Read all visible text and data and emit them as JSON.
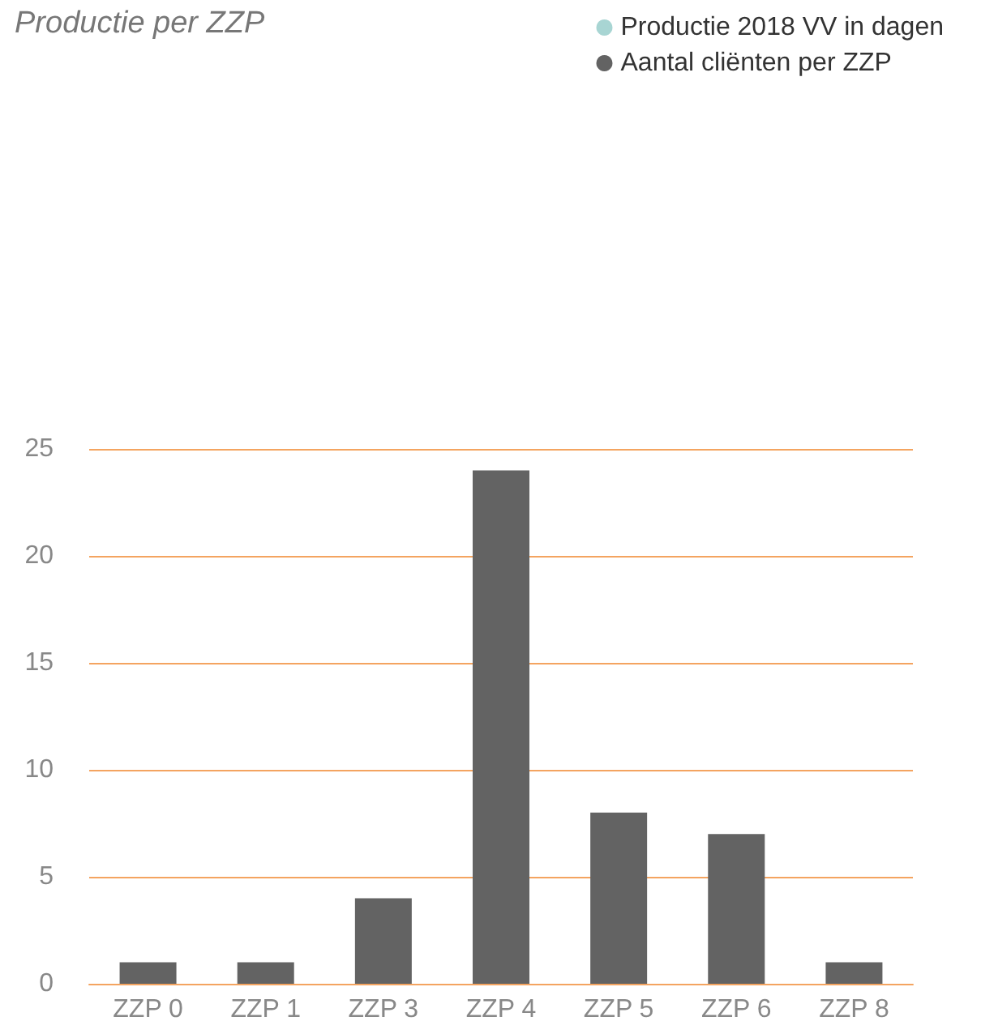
{
  "chart_data": {
    "type": "bar",
    "title": "Productie per ZZP",
    "categories": [
      "ZZP 0",
      "ZZP 1",
      "ZZP 3",
      "ZZP 4",
      "ZZP 5",
      "ZZP 6",
      "ZZP 8"
    ],
    "series": [
      {
        "name": "Productie 2018 VV in dagen",
        "color": "#a8d5d3",
        "values": [
          null,
          null,
          null,
          null,
          null,
          null,
          null
        ]
      },
      {
        "name": "Aantal cliënten per ZZP",
        "color": "#636363",
        "values": [
          1,
          1,
          4,
          24,
          8,
          7,
          1
        ]
      }
    ],
    "ylim": [
      0,
      25
    ],
    "yticks": [
      0,
      5,
      10,
      15,
      20,
      25
    ],
    "grid": "y",
    "legend": "top right"
  }
}
